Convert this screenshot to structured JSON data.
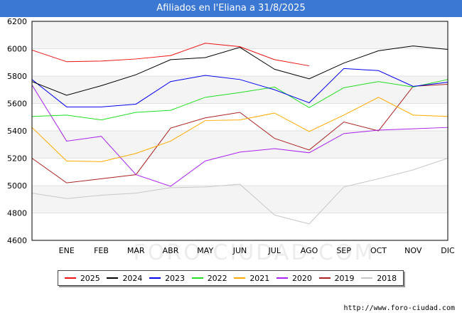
{
  "header": {
    "title": "Afiliados en l'Eliana a 31/8/2025"
  },
  "source": "http://www.foro-ciudad.com",
  "watermark": "FORO-CIUDAD.COM",
  "chart_data": {
    "type": "line",
    "title": "Afiliados en l'Eliana a 31/8/2025",
    "categories": [
      "",
      "ENE",
      "FEB",
      "MAR",
      "ABR",
      "MAY",
      "JUN",
      "JUL",
      "AGO",
      "SEP",
      "OCT",
      "NOV",
      "DIC"
    ],
    "ylim": [
      4600,
      6200
    ],
    "yticks": [
      4600,
      4800,
      5000,
      5200,
      5400,
      5600,
      5800,
      6000,
      6200
    ],
    "grid": true,
    "legend_position": "bottom",
    "series": [
      {
        "name": "2025",
        "color": "#ee1111",
        "values": [
          5990,
          5905,
          5910,
          5925,
          5950,
          6040,
          6015,
          5920,
          5875,
          null,
          null,
          null,
          null
        ]
      },
      {
        "name": "2024",
        "color": "#000000",
        "values": [
          5760,
          5660,
          5730,
          5810,
          5920,
          5935,
          6010,
          5850,
          5780,
          5895,
          5985,
          6020,
          5995
        ]
      },
      {
        "name": "2023",
        "color": "#0000ee",
        "values": [
          5775,
          5575,
          5575,
          5595,
          5760,
          5805,
          5775,
          5700,
          5605,
          5855,
          5840,
          5725,
          5755
        ]
      },
      {
        "name": "2022",
        "color": "#22dd22",
        "values": [
          5505,
          5515,
          5480,
          5535,
          5550,
          5645,
          5680,
          5720,
          5570,
          5715,
          5760,
          5720,
          5775
        ]
      },
      {
        "name": "2021",
        "color": "#ffaa00",
        "values": [
          5425,
          5180,
          5175,
          5235,
          5325,
          5475,
          5480,
          5530,
          5395,
          5515,
          5645,
          5515,
          5505
        ]
      },
      {
        "name": "2020",
        "color": "#aa22ee",
        "values": [
          5735,
          5325,
          5360,
          5080,
          4995,
          5180,
          5245,
          5270,
          5240,
          5380,
          5405,
          5415,
          5425
        ]
      },
      {
        "name": "2019",
        "color": "#aa2222",
        "values": [
          5200,
          5020,
          5050,
          5080,
          5420,
          5495,
          5535,
          5345,
          5260,
          5465,
          5400,
          5725,
          5740
        ]
      },
      {
        "name": "2018",
        "color": "#c8c8c8",
        "values": [
          4945,
          4905,
          4930,
          4945,
          4985,
          4990,
          5010,
          4785,
          4720,
          4990,
          5050,
          5115,
          5200
        ]
      }
    ]
  }
}
